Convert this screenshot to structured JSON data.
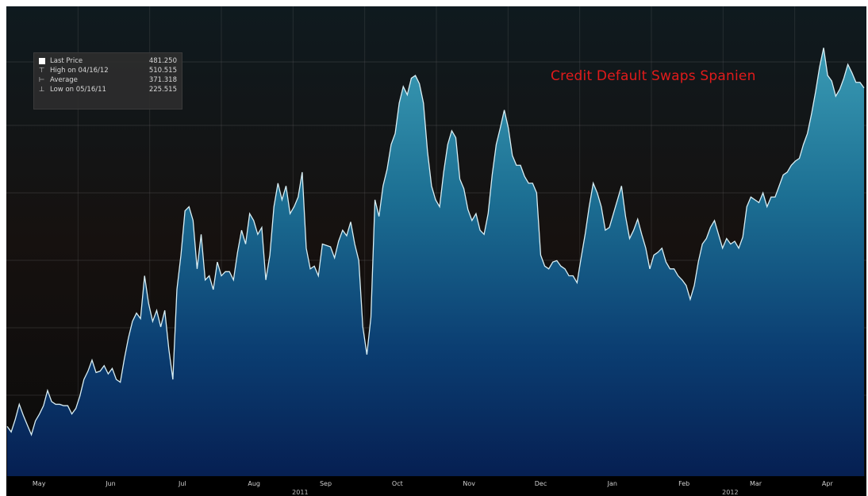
{
  "chart_data": {
    "type": "area",
    "title": "Credit Default Swaps Spanien",
    "xlabel": "",
    "ylabel": "",
    "x_tick_labels": [
      "May",
      "Jun",
      "Jul",
      "Aug",
      "Sep",
      "Oct",
      "Nov",
      "Dec",
      "Jan",
      "Feb",
      "Mar",
      "Apr"
    ],
    "year_labels": [
      "2011",
      "2012"
    ],
    "ylim": [
      200,
      540
    ],
    "grid": true,
    "legend_placement": "top-left",
    "legend": [
      {
        "symbol": "square",
        "label": "Last Price",
        "value": "481.250"
      },
      {
        "symbol": "high",
        "label": "High on 04/16/12",
        "value": "510.515"
      },
      {
        "symbol": "avg",
        "label": "Average",
        "value": "371.318"
      },
      {
        "symbol": "low",
        "label": "Low on 05/16/11",
        "value": "225.515"
      }
    ],
    "series": [
      {
        "values": [
          236,
          232,
          241,
          252,
          244,
          237,
          230,
          240,
          245,
          251,
          262,
          254,
          252,
          252,
          251,
          251,
          245,
          249,
          258,
          270,
          276,
          284,
          275,
          276,
          280,
          274,
          278,
          270,
          268,
          285,
          300,
          312,
          318,
          314,
          345,
          325,
          312,
          320,
          308,
          320,
          292,
          270,
          335,
          360,
          392,
          395,
          385,
          350,
          375,
          342,
          345,
          335,
          355,
          345,
          348,
          348,
          342,
          362,
          378,
          368,
          390,
          385,
          375,
          380,
          342,
          360,
          395,
          412,
          400,
          410,
          390,
          395,
          402,
          420,
          365,
          350,
          352,
          345,
          368,
          367,
          366,
          358,
          370,
          378,
          374,
          384,
          368,
          356,
          308,
          288,
          315,
          400,
          388,
          410,
          422,
          440,
          448,
          470,
          482,
          476,
          488,
          490,
          484,
          470,
          435,
          410,
          400,
          395,
          420,
          440,
          450,
          445,
          415,
          408,
          393,
          385,
          390,
          378,
          375,
          390,
          418,
          440,
          452,
          465,
          452,
          432,
          425,
          425,
          417,
          412,
          412,
          405,
          360,
          352,
          350,
          355,
          356,
          352,
          350,
          345,
          345,
          340,
          358,
          375,
          395,
          412,
          405,
          395,
          378,
          380,
          390,
          400,
          410,
          388,
          372,
          378,
          386,
          375,
          365,
          350,
          360,
          362,
          365,
          355,
          350,
          350,
          345,
          342,
          338,
          328,
          338,
          355,
          368,
          372,
          380,
          385,
          375,
          365,
          372,
          368,
          370,
          365,
          373,
          395,
          402,
          400,
          398,
          405,
          395,
          402,
          402,
          410,
          418,
          420,
          425,
          428,
          430,
          440,
          448,
          462,
          478,
          496,
          510,
          490,
          486,
          475,
          480,
          488,
          498,
          492,
          485,
          485,
          481
        ]
      }
    ]
  }
}
